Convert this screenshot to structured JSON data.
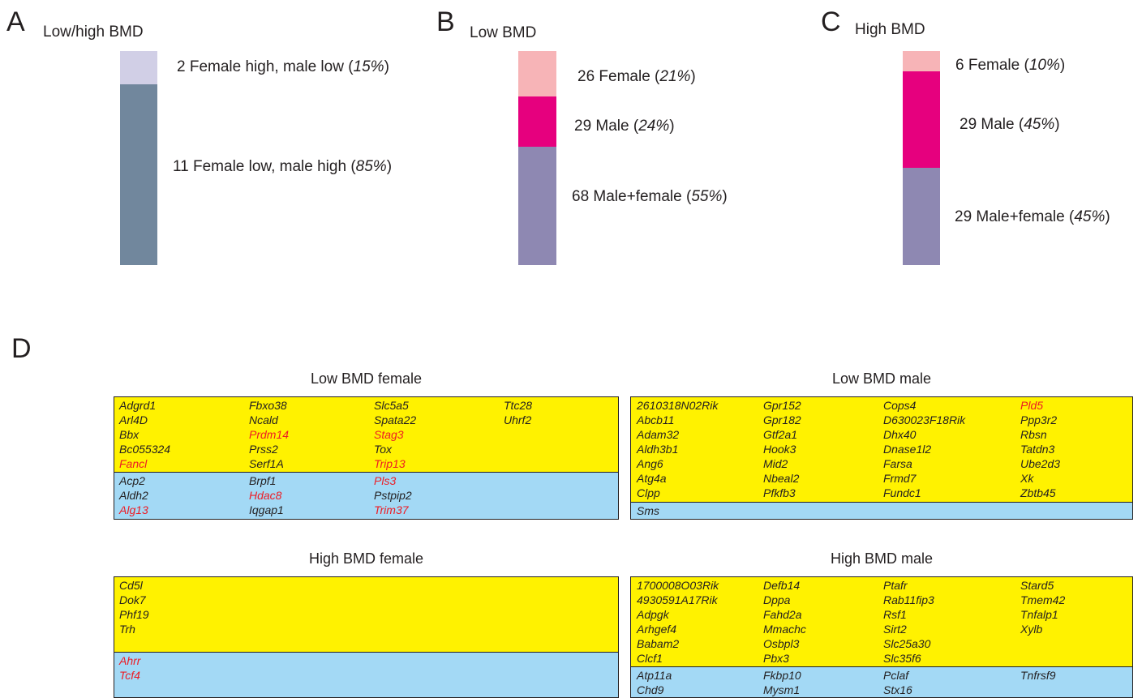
{
  "chart_data": [
    {
      "panel": "A",
      "type": "bar",
      "title": "Low/high BMD",
      "stacked": true,
      "segments": [
        {
          "count": 2,
          "label": "Female high, male low",
          "percent": "15%",
          "color": "#d1cfe6"
        },
        {
          "count": 11,
          "label": "Female low, male high",
          "percent": "85%",
          "color": "#71879d"
        }
      ]
    },
    {
      "panel": "B",
      "type": "bar",
      "title": "Low BMD",
      "stacked": true,
      "segments": [
        {
          "count": 26,
          "label": "Female",
          "percent": "21%",
          "color": "#f7b4b7"
        },
        {
          "count": 29,
          "label": "Male",
          "percent": "24%",
          "color": "#e6007e"
        },
        {
          "count": 68,
          "label": "Male+female",
          "percent": "55%",
          "color": "#8e88b2"
        }
      ]
    },
    {
      "panel": "C",
      "type": "bar",
      "title": "High BMD",
      "stacked": true,
      "segments": [
        {
          "count": 6,
          "label": "Female",
          "percent": "10%",
          "color": "#f7b4b7"
        },
        {
          "count": 29,
          "label": "Male",
          "percent": "45%",
          "color": "#e6007e"
        },
        {
          "count": 29,
          "label": "Male+female",
          "percent": "45%",
          "color": "#8e88b2"
        }
      ]
    },
    {
      "panel": "D",
      "type": "table",
      "tables": [
        {
          "title": "Low BMD female",
          "yellow": [
            [
              "Adgrd1",
              "Arl4D",
              "Bbx",
              "Bc055324",
              "Fancl"
            ],
            [
              "Fbxo38",
              "Ncald",
              "Prdm14",
              "Prss2",
              "Serf1A"
            ],
            [
              "Slc5a5",
              "Spata22",
              "Stag3",
              "Tox",
              "Trip13"
            ],
            [
              "Ttc28",
              "Uhrf2"
            ]
          ],
          "blue": [
            [
              "Acp2",
              "Aldh2",
              "Alg13"
            ],
            [
              "Brpf1",
              "Hdac8",
              "Iqgap1"
            ],
            [
              "Pls3",
              "Pstpip2",
              "Trim37"
            ],
            []
          ],
          "red": [
            "Fancl",
            "Prdm14",
            "Stag3",
            "Trip13",
            "Alg13",
            "Hdac8",
            "Pls3",
            "Trim37"
          ]
        },
        {
          "title": "Low BMD male",
          "yellow": [
            [
              "2610318N02Rik",
              "Abcb11",
              "Adam32",
              "Aldh3b1",
              "Ang6",
              "Atg4a",
              "Clpp"
            ],
            [
              "Gpr152",
              "Gpr182",
              "Gtf2a1",
              "Hook3",
              "Mid2",
              "Nbeal2",
              "Pfkfb3"
            ],
            [
              "Cops4",
              "D630023F18Rik",
              "Dhx40",
              "Dnase1l2",
              "Farsa",
              "Frmd7",
              "Fundc1"
            ],
            [
              "Pld5",
              "Ppp3r2",
              "Rbsn",
              "Tatdn3",
              "Ube2d3",
              "Xk",
              "Zbtb45"
            ]
          ],
          "blue": [
            [
              "Sms"
            ],
            [],
            [],
            []
          ],
          "red": [
            "Pld5"
          ]
        },
        {
          "title": "High BMD female",
          "yellow": [
            [
              "Cd5l",
              "Dok7",
              "Phf19",
              "Trh"
            ],
            [],
            [],
            []
          ],
          "blue": [
            [
              "Ahrr",
              "Tcf4"
            ],
            [],
            [],
            []
          ],
          "red": [
            "Ahrr",
            "Tcf4"
          ]
        },
        {
          "title": "High BMD male",
          "yellow": [
            [
              "1700008O03Rik",
              "4930591A17Rik",
              "Adpgk",
              "Arhgef4",
              "Babam2",
              "Clcf1"
            ],
            [
              "Defb14",
              "Dppa",
              "Fahd2a",
              "Mmachc",
              "Osbpl3",
              "Pbx3"
            ],
            [
              "Ptafr",
              "Rab11fip3",
              "Rsf1",
              "Sirt2",
              "Slc25a30",
              "Slc35f6"
            ],
            [
              "Stard5",
              "Tmem42",
              "Tnfalp1",
              "Xylb"
            ]
          ],
          "blue": [
            [
              "Atp11a",
              "Chd9"
            ],
            [
              "Fkbp10",
              "Mysm1"
            ],
            [
              "Pclaf",
              "Stx16"
            ],
            [
              "Tnfrsf9"
            ]
          ],
          "red": []
        }
      ]
    }
  ]
}
